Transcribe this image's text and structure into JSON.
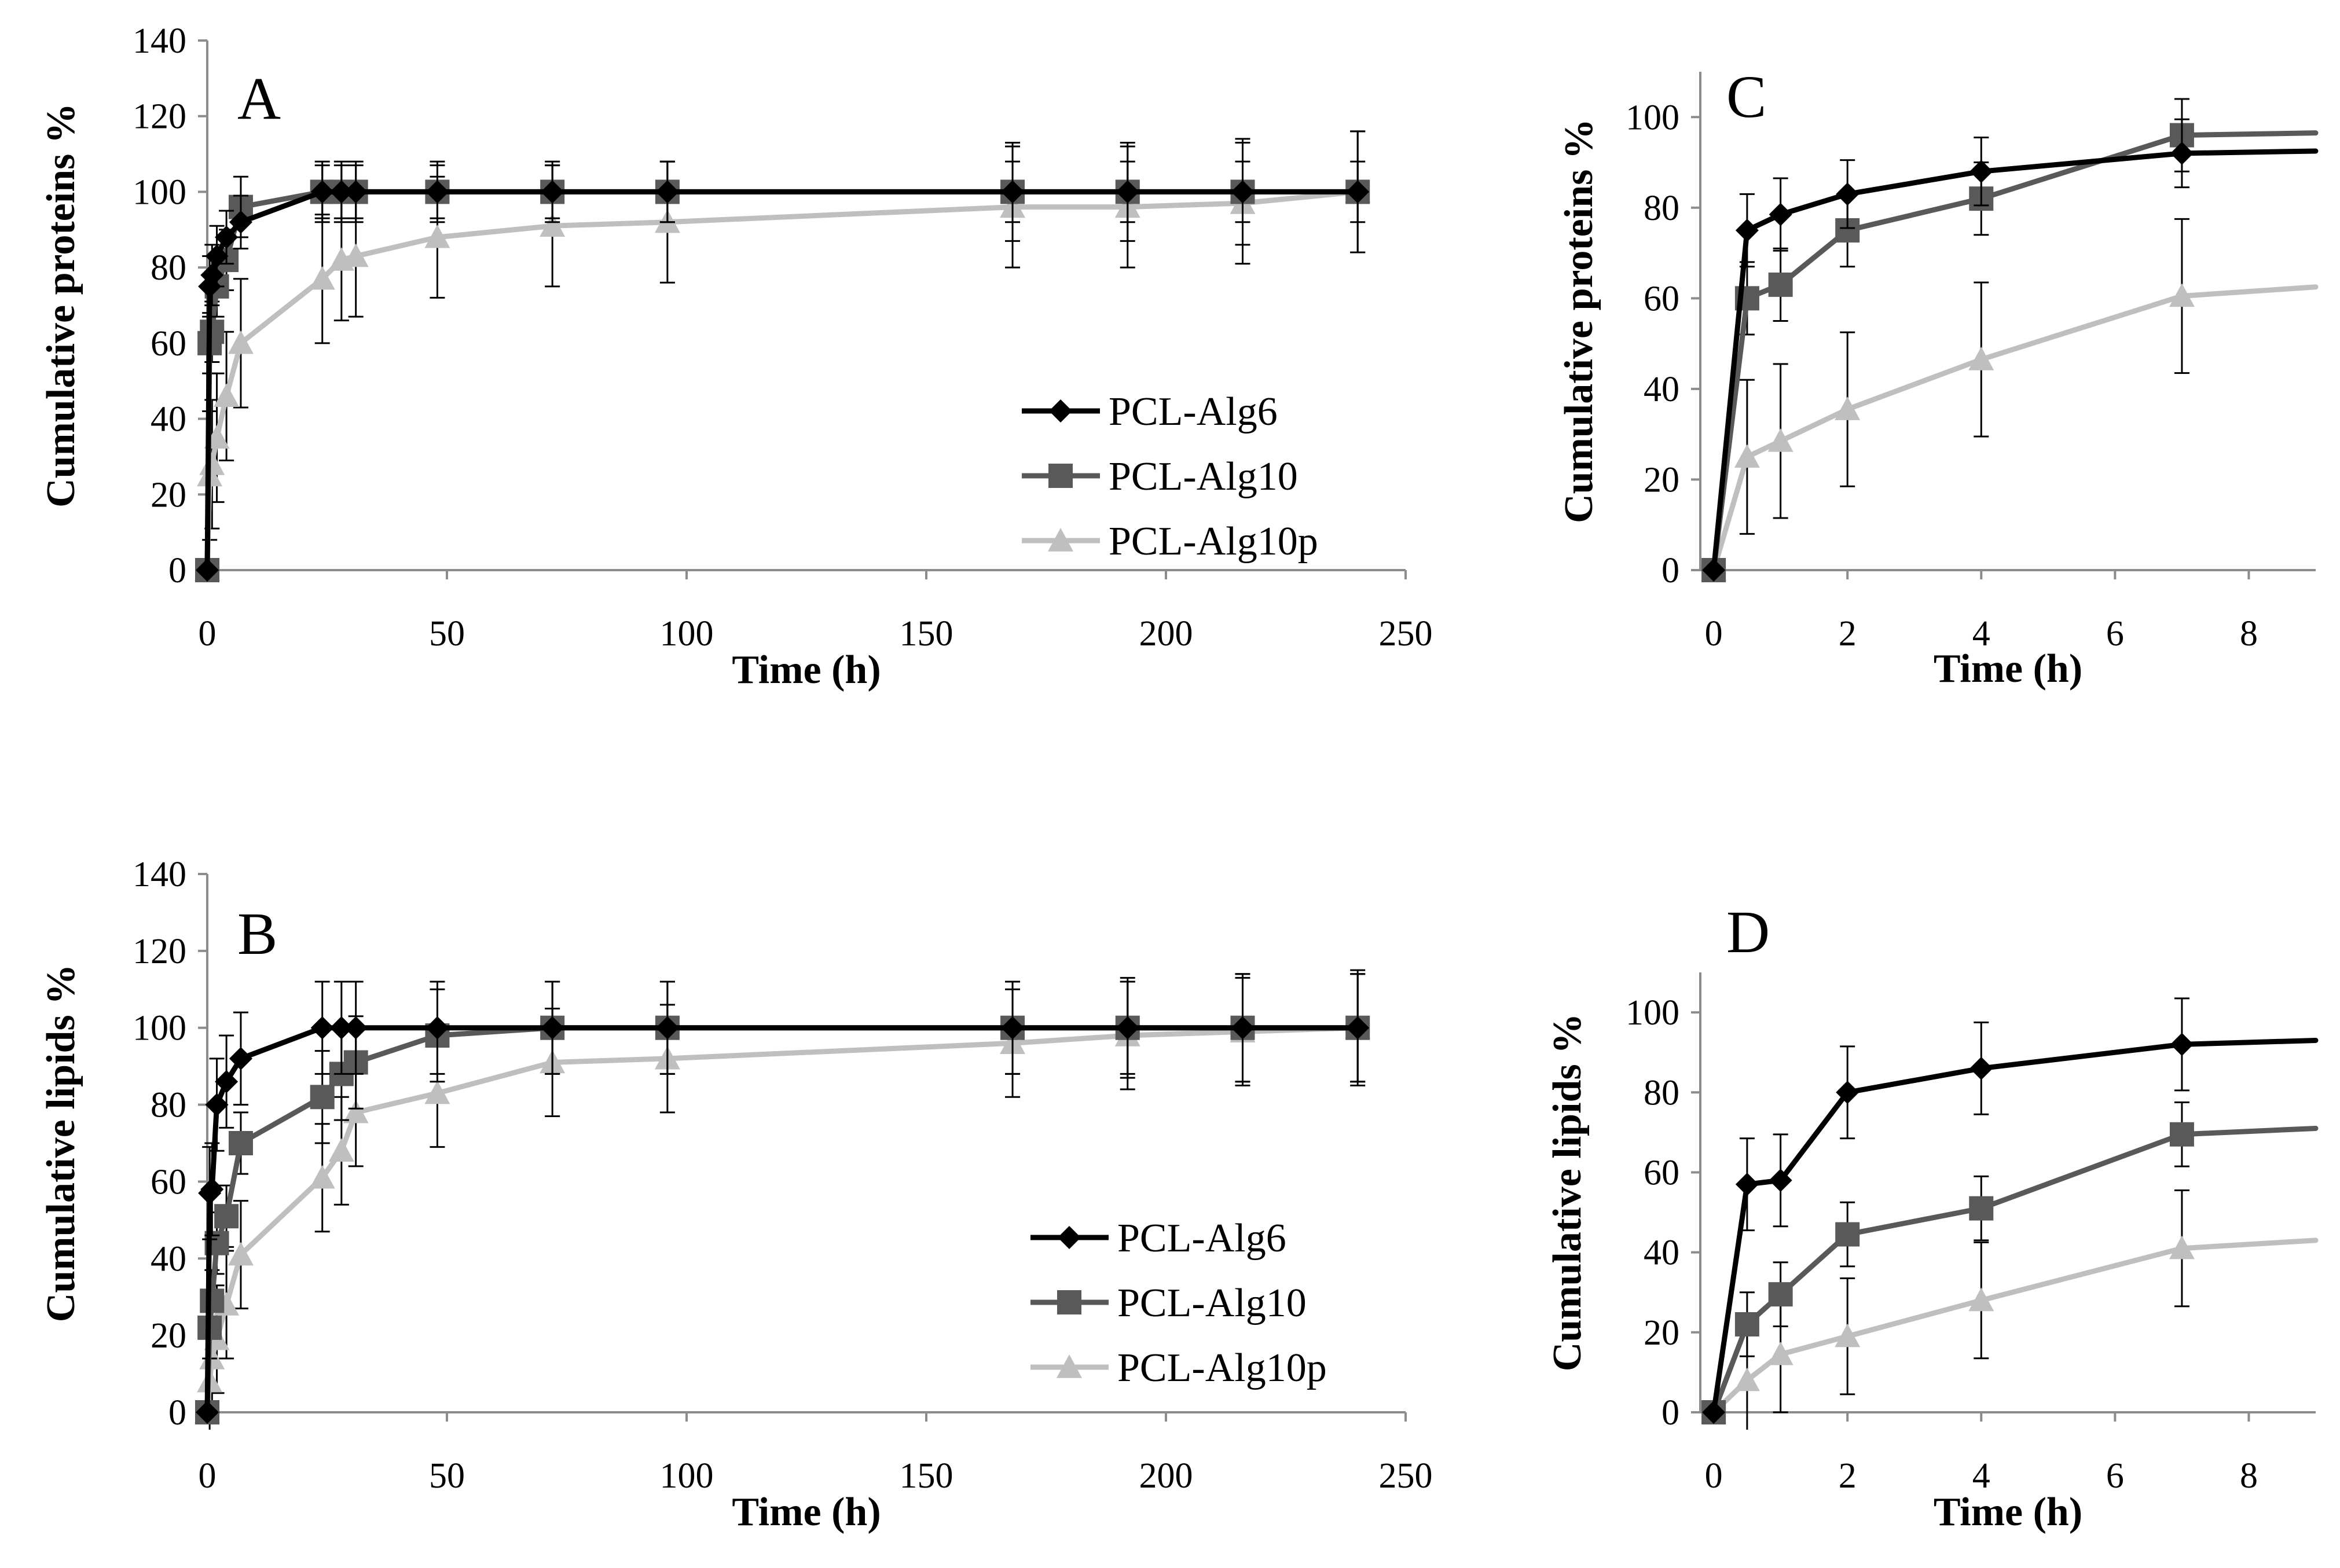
{
  "figure": {
    "colors": {
      "PCL-Alg6": "#000000",
      "PCL-Alg10": "#595959",
      "PCL-Alg10p": "#bfbfbf"
    },
    "markers": {
      "PCL-Alg6": "diamond",
      "PCL-Alg10": "square",
      "PCL-Alg10p": "triangle"
    }
  },
  "chart_data": [
    {
      "panel": "A",
      "type": "line",
      "xlabel": "Time (h)",
      "ylabel": "Cumulative proteins %",
      "xlim": [
        0,
        250
      ],
      "ylim": [
        0,
        140
      ],
      "xticks": [
        0,
        50,
        100,
        150,
        200,
        250
      ],
      "yticks": [
        0,
        20,
        40,
        60,
        80,
        100,
        120,
        140
      ],
      "legend": [
        "PCL-Alg6",
        "PCL-Alg10",
        "PCL-Alg10p"
      ],
      "series": [
        {
          "name": "PCL-Alg6",
          "x": [
            0,
            0.5,
            1,
            2,
            4,
            7,
            24,
            28,
            31,
            48,
            72,
            96,
            168,
            192,
            216,
            240
          ],
          "y": [
            0,
            75,
            78,
            83,
            88,
            92,
            100,
            100,
            100,
            100,
            100,
            100,
            100,
            100,
            100,
            100
          ],
          "err": [
            0,
            8,
            8,
            8,
            7,
            7,
            8,
            8,
            8,
            8,
            8,
            8,
            8,
            8,
            8,
            8
          ]
        },
        {
          "name": "PCL-Alg10",
          "x": [
            0,
            0.5,
            1,
            2,
            4,
            7,
            24,
            28,
            31,
            48,
            72,
            96,
            168,
            192,
            216,
            240
          ],
          "y": [
            0,
            60,
            63,
            75,
            82,
            96,
            100,
            100,
            100,
            100,
            100,
            100,
            100,
            100,
            100,
            100
          ],
          "err": [
            0,
            8,
            8,
            8,
            8,
            8,
            7,
            7,
            7,
            7,
            7,
            8,
            13,
            13,
            14,
            16
          ]
        },
        {
          "name": "PCL-Alg10p",
          "x": [
            0,
            0.5,
            1,
            2,
            4,
            7,
            24,
            28,
            31,
            48,
            72,
            96,
            168,
            192,
            216,
            240
          ],
          "y": [
            0,
            25,
            28,
            35,
            46,
            60,
            77,
            82,
            83,
            88,
            91,
            92,
            96,
            96,
            97,
            100
          ],
          "err": [
            0,
            17,
            17,
            17,
            17,
            17,
            17,
            16,
            16,
            16,
            16,
            16,
            16,
            16,
            16,
            16
          ]
        }
      ]
    },
    {
      "panel": "B",
      "type": "line",
      "xlabel": "Time (h)",
      "ylabel": "Cumulative lipids %",
      "xlim": [
        0,
        250
      ],
      "ylim": [
        0,
        140
      ],
      "xticks": [
        0,
        50,
        100,
        150,
        200,
        250
      ],
      "yticks": [
        0,
        20,
        40,
        60,
        80,
        100,
        120,
        140
      ],
      "legend": [
        "PCL-Alg6",
        "PCL-Alg10",
        "PCL-Alg10p"
      ],
      "series": [
        {
          "name": "PCL-Alg6",
          "x": [
            0,
            0.5,
            1,
            2,
            4,
            7,
            24,
            28,
            31,
            48,
            72,
            96,
            168,
            192,
            216,
            240
          ],
          "y": [
            0,
            57,
            58,
            80,
            86,
            92,
            100,
            100,
            100,
            100,
            100,
            100,
            100,
            100,
            100,
            100
          ],
          "err": [
            0,
            12,
            12,
            12,
            12,
            12,
            12,
            12,
            12,
            12,
            12,
            12,
            12,
            12,
            14,
            14
          ]
        },
        {
          "name": "PCL-Alg10",
          "x": [
            0,
            0.5,
            1,
            2,
            4,
            7,
            24,
            28,
            31,
            48,
            72,
            96,
            168,
            192,
            216,
            240
          ],
          "y": [
            0,
            22,
            29,
            44,
            51,
            70,
            82,
            88,
            91,
            98,
            100,
            100,
            100,
            100,
            100,
            100
          ],
          "err": [
            0,
            8,
            8,
            8,
            8,
            8,
            12,
            12,
            12,
            12,
            12,
            12,
            12,
            13,
            14,
            15
          ]
        },
        {
          "name": "PCL-Alg10p",
          "x": [
            0,
            0.5,
            1,
            2,
            4,
            7,
            24,
            28,
            31,
            48,
            72,
            96,
            168,
            192,
            216,
            240
          ],
          "y": [
            0,
            8,
            14,
            19,
            28,
            41,
            61,
            68,
            78,
            83,
            91,
            92,
            96,
            98,
            99,
            100
          ],
          "err": [
            0,
            14,
            14,
            14,
            14,
            14,
            14,
            14,
            14,
            14,
            14,
            14,
            14,
            14,
            14,
            14
          ]
        }
      ]
    },
    {
      "panel": "C",
      "type": "line",
      "xlabel": "Time (h)",
      "ylabel": "Cumulative proteins %",
      "xlim": [
        -0.2,
        9
      ],
      "ylim": [
        0,
        110
      ],
      "xticks": [
        0,
        2,
        4,
        6,
        8
      ],
      "yticks": [
        0,
        20,
        40,
        60,
        80,
        100
      ],
      "series": [
        {
          "name": "PCL-Alg6",
          "x": [
            0,
            0.5,
            1,
            2,
            4,
            7,
            9
          ],
          "y": [
            0,
            75,
            78.5,
            83,
            88,
            92,
            92.5
          ],
          "err": [
            0,
            8,
            8,
            7.5,
            7.5,
            7.5,
            null
          ],
          "markers": [
            true,
            true,
            true,
            true,
            true,
            true,
            false
          ]
        },
        {
          "name": "PCL-Alg10",
          "x": [
            0,
            0.5,
            1,
            2,
            4,
            7,
            9
          ],
          "y": [
            0,
            60,
            63,
            75,
            82,
            96,
            96.5
          ],
          "err": [
            0,
            8,
            8,
            8,
            8,
            8,
            null
          ],
          "markers": [
            true,
            true,
            true,
            true,
            true,
            true,
            false
          ]
        },
        {
          "name": "PCL-Alg10p",
          "x": [
            0,
            0.5,
            1,
            2,
            4,
            7,
            9
          ],
          "y": [
            0,
            25,
            28.5,
            35.5,
            46.5,
            60.5,
            62.5
          ],
          "err": [
            0,
            17,
            17,
            17,
            17,
            17,
            null
          ],
          "markers": [
            true,
            true,
            true,
            true,
            true,
            true,
            false
          ]
        }
      ]
    },
    {
      "panel": "D",
      "type": "line",
      "xlabel": "Time (h)",
      "ylabel": "Cumulative lipids %",
      "xlim": [
        -0.2,
        9
      ],
      "ylim": [
        0,
        110
      ],
      "xticks": [
        0,
        2,
        4,
        6,
        8
      ],
      "yticks": [
        0,
        20,
        40,
        60,
        80,
        100
      ],
      "series": [
        {
          "name": "PCL-Alg6",
          "x": [
            0,
            0.5,
            1,
            2,
            4,
            7,
            9
          ],
          "y": [
            0,
            57,
            58,
            80,
            86,
            92,
            93
          ],
          "err": [
            0,
            11.5,
            11.5,
            11.5,
            11.5,
            11.5,
            null
          ],
          "markers": [
            true,
            true,
            true,
            true,
            true,
            true,
            false
          ]
        },
        {
          "name": "PCL-Alg10",
          "x": [
            0,
            0.5,
            1,
            2,
            4,
            7,
            9
          ],
          "y": [
            0,
            22,
            29.5,
            44.5,
            51,
            69.5,
            71
          ],
          "err": [
            0,
            8,
            8,
            8,
            8,
            8,
            null
          ],
          "markers": [
            true,
            true,
            true,
            true,
            true,
            true,
            false
          ]
        },
        {
          "name": "PCL-Alg10p",
          "x": [
            0,
            0.5,
            1,
            2,
            4,
            7,
            9
          ],
          "y": [
            0,
            8,
            14.5,
            19,
            28,
            41,
            43
          ],
          "err": [
            0,
            14.5,
            14.5,
            14.5,
            14.5,
            14.5,
            null
          ],
          "markers": [
            true,
            true,
            true,
            true,
            true,
            true,
            false
          ]
        }
      ]
    }
  ]
}
